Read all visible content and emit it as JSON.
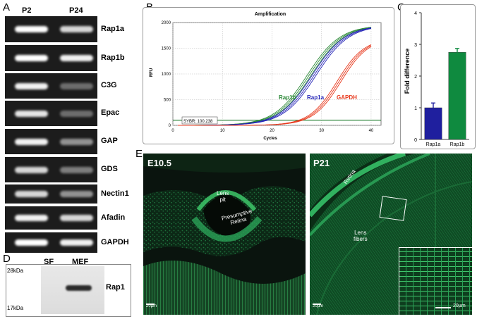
{
  "panelA": {
    "letter": "A",
    "col_p2": "P2",
    "col_p24": "P24",
    "lanes": [
      {
        "label": "Rap1a",
        "p2": 1.0,
        "p24": 0.85
      },
      {
        "label": "Rap1b",
        "p2": 1.0,
        "p24": 0.95
      },
      {
        "label": "C3G",
        "p2": 0.95,
        "p24": 0.35
      },
      {
        "label": "Epac",
        "p2": 0.9,
        "p24": 0.35
      },
      {
        "label": "GAP",
        "p2": 0.95,
        "p24": 0.55
      },
      {
        "label": "GDS",
        "p2": 0.85,
        "p24": 0.45
      },
      {
        "label": "Nectin1",
        "p2": 0.85,
        "p24": 0.55
      },
      {
        "label": "Afadin",
        "p2": 0.95,
        "p24": 0.85
      },
      {
        "label": "GAPDH",
        "p2": 1.0,
        "p24": 0.95
      }
    ]
  },
  "panelB": {
    "letter": "B",
    "title": "Amplification",
    "ylabel": "RFU",
    "xlabel": "Cycles",
    "threshold_label": "SYBR: 100.238",
    "series_labels": {
      "rap1b": "Rap1b",
      "rap1a": "Rap1a",
      "gapdh": "GAPDH"
    }
  },
  "panelC": {
    "letter": "C",
    "ylabel": "Fold difference"
  },
  "panelD": {
    "letter": "D",
    "col_sf": "SF",
    "col_mef": "MEF",
    "mw_top": "28kDa",
    "mw_bottom": "17kDa",
    "band_label": "Rap1"
  },
  "panelE": {
    "letter": "E",
    "left": {
      "stage": "E10.5",
      "label_pit": "Lens\npit",
      "label_retina": "Presumptive\nRetina",
      "scale": "20µm"
    },
    "right": {
      "stage": "P21",
      "label_retina": "Retina",
      "label_fibers": "Lens\nfibers",
      "scale1": "20µm",
      "scale2": "20µm"
    }
  },
  "chart_data": [
    {
      "type": "line",
      "title": "Amplification",
      "xlabel": "Cycles",
      "ylabel": "RFU",
      "xlim": [
        0,
        42
      ],
      "ylim": [
        0,
        2000
      ],
      "xticks": [
        0,
        10,
        20,
        30,
        40
      ],
      "yticks": [
        0,
        500,
        1000,
        1500,
        2000
      ],
      "threshold": 100.238,
      "series": [
        {
          "name": "Rap1b",
          "color": "#2e8b3a",
          "midpoint": 27.5,
          "plateau": 1950,
          "k": 0.3
        },
        {
          "name": "Rap1a",
          "color": "#2727b8",
          "midpoint": 28.5,
          "plateau": 1950,
          "k": 0.3
        },
        {
          "name": "GAPDH",
          "color": "#e83a1e",
          "midpoint": 33.5,
          "plateau": 1700,
          "k": 0.36
        }
      ]
    },
    {
      "type": "bar",
      "categories": [
        "Rap1a",
        "Rap1b"
      ],
      "values": [
        1.0,
        2.75
      ],
      "errors": [
        0.15,
        0.12
      ],
      "colors": [
        "#1f1f9e",
        "#0f8a3f"
      ],
      "ylabel": "Fold difference",
      "ylim": [
        0,
        4
      ],
      "yticks": [
        0,
        1,
        2,
        3,
        4
      ]
    }
  ]
}
